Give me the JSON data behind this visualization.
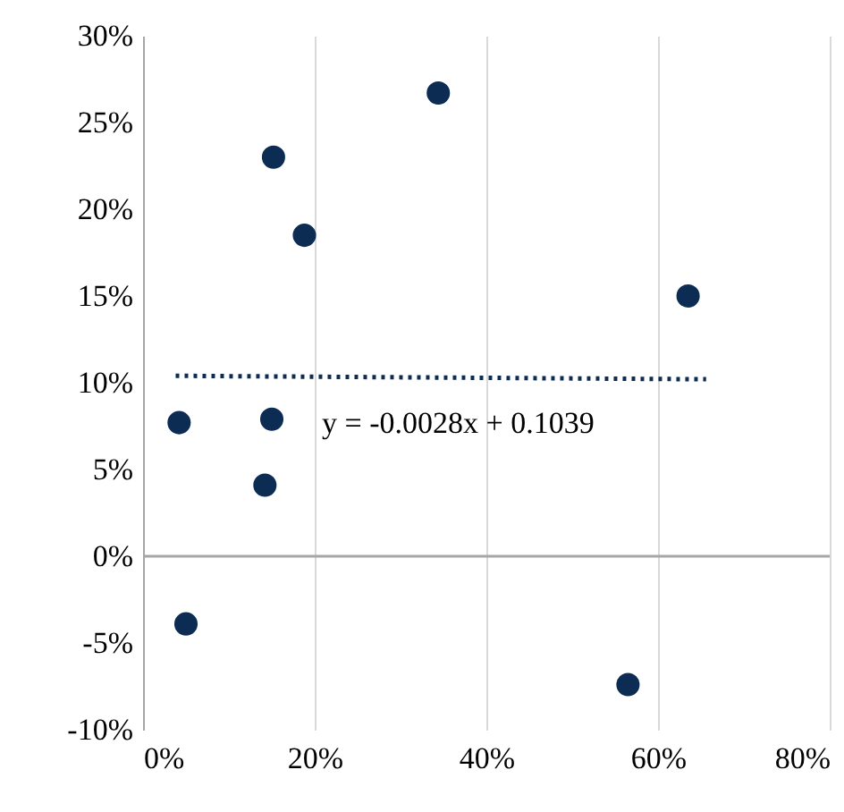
{
  "chart_data": {
    "type": "scatter",
    "x": [
      15.2,
      34.4,
      18.8,
      63.5,
      4.2,
      15.0,
      14.2,
      5.0,
      56.5
    ],
    "series": [
      {
        "type": "scatter",
        "color": "#0d2c54",
        "marker": "circle",
        "values": [
          23.0,
          26.7,
          18.5,
          15.0,
          7.7,
          7.9,
          4.1,
          -3.9,
          -7.4
        ]
      },
      {
        "type": "line",
        "color": "#0d2c54",
        "x": [
          3.8,
          65.6
        ],
        "values": [
          10.4,
          10.2
        ],
        "line_style": "dotted",
        "marker": "none"
      }
    ],
    "xlim": [
      0,
      80
    ],
    "ylim": [
      -10,
      30
    ],
    "xticks": [
      {
        "value": 0,
        "label": "0%"
      },
      {
        "value": 20,
        "label": "20%"
      },
      {
        "value": 40,
        "label": "40%"
      },
      {
        "value": 60,
        "label": "60%"
      },
      {
        "value": 80,
        "label": "80%"
      }
    ],
    "yticks": [
      {
        "value": -10,
        "label": "-10%"
      },
      {
        "value": -5,
        "label": "-5%"
      },
      {
        "value": 0,
        "label": "0%"
      },
      {
        "value": 5,
        "label": "5%"
      },
      {
        "value": 10,
        "label": "10%"
      },
      {
        "value": 15,
        "label": "15%"
      },
      {
        "value": 20,
        "label": "20%"
      },
      {
        "value": 25,
        "label": "25%"
      },
      {
        "value": 30,
        "label": "30%"
      }
    ],
    "ref_lines": [
      {
        "axis": "y",
        "value": 0,
        "color": "#a6a6a6"
      }
    ],
    "annotations": [
      "y = -0.0028x + 0.1039"
    ],
    "grid": "x"
  }
}
